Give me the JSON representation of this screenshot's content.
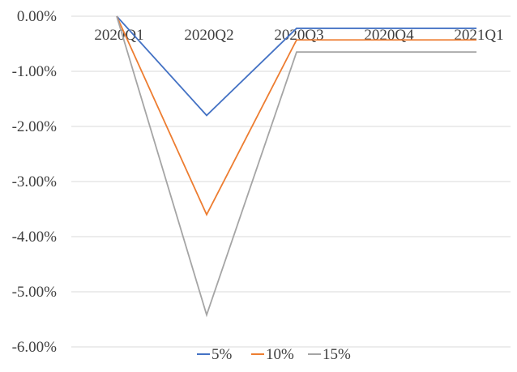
{
  "chart_data": {
    "type": "line",
    "title": "",
    "xlabel": "",
    "ylabel": "",
    "categories": [
      "2020Q1",
      "2020Q2",
      "2020Q3",
      "2020Q4",
      "2021Q1"
    ],
    "y_axis": {
      "min": -6.0,
      "max": 0.0,
      "step": 1.0,
      "ticks": [
        "0.00%",
        "-1.00%",
        "-2.00%",
        "-3.00%",
        "-4.00%",
        "-5.00%",
        "-6.00%"
      ],
      "unit": "%"
    },
    "gridlines": true,
    "legend_position": "bottom",
    "series": [
      {
        "name": "5%",
        "color": "#4472C4",
        "values": [
          0.0,
          -1.8,
          -0.22,
          -0.22,
          -0.22
        ]
      },
      {
        "name": "10%",
        "color": "#ED7D31",
        "values": [
          0.0,
          -3.6,
          -0.43,
          -0.43,
          -0.43
        ]
      },
      {
        "name": "15%",
        "color": "#A5A5A5",
        "values": [
          0.0,
          -5.42,
          -0.65,
          -0.65,
          -0.65
        ]
      }
    ]
  }
}
